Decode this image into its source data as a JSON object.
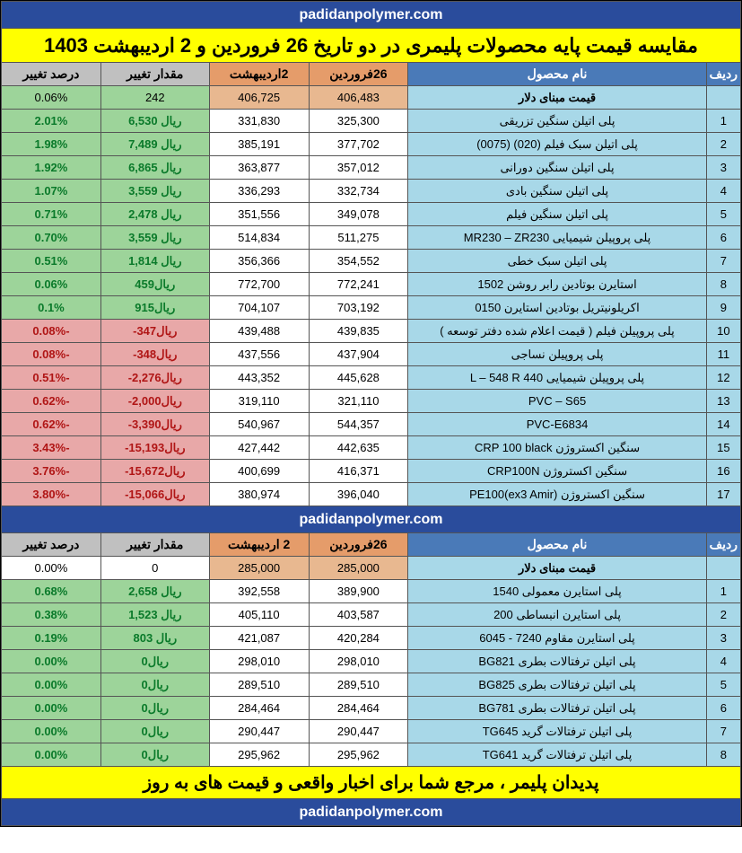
{
  "url": "padidanpolymer.com",
  "title": "مقایسه قیمت پایه محصولات پلیمری در دو تاریخ 26 فروردین و 2 اردیبهشت 1403",
  "footer": "پدیدان پلیمر ، مرجع شما برای اخبار واقعی  و قیمت های به روز",
  "watermark": "padidanpolymer",
  "colors": {
    "header_idx": "#4a7ab8",
    "header_name": "#4a7ab8",
    "header_date": "#e59c6a",
    "header_diff": "#c0c0c0",
    "name_cell": "#a8d8e8",
    "date_cell": "#ffffff",
    "dollar_cell": "#e8b890",
    "dollar_name": "#a8d8e8",
    "green": "#9dd49a",
    "red": "#e8a8a8",
    "neutral": "#ffffff",
    "url_bg": "#2a4c9c",
    "title_bg": "#ffff00"
  },
  "headers": {
    "idx": "ردیف",
    "name": "نام محصول",
    "date1": "26فروردین",
    "date2": "2اردیبهشت",
    "diff": "مقدار تغییر",
    "pct": "درصد تغییر"
  },
  "table1": {
    "dollar_row": {
      "name": "قیمت مبنای دلار",
      "d1": "406,483",
      "d2": "406,725",
      "diff": "242",
      "pct": "0.06%",
      "diff_color": "green"
    },
    "rows": [
      {
        "idx": "1",
        "name": "پلی اتیلن سنگین تزریقی",
        "d1": "325,300",
        "d2": "331,830",
        "diff": "ریال 6,530",
        "pct": "2.01%",
        "c": "green"
      },
      {
        "idx": "2",
        "name": "پلی اتیلن سبک فیلم (020) (0075)",
        "d1": "377,702",
        "d2": "385,191",
        "diff": "ریال 7,489",
        "pct": "1.98%",
        "c": "green"
      },
      {
        "idx": "3",
        "name": "پلی اتیلن سنگین دورانی",
        "d1": "357,012",
        "d2": "363,877",
        "diff": "ریال 6,865",
        "pct": "1.92%",
        "c": "green"
      },
      {
        "idx": "4",
        "name": "پلی اتیلن سنگین بادی",
        "d1": "332,734",
        "d2": "336,293",
        "diff": "ریال 3,559",
        "pct": "1.07%",
        "c": "green"
      },
      {
        "idx": "5",
        "name": "پلی اتیلن سنگین فیلم",
        "d1": "349,078",
        "d2": "351,556",
        "diff": "ریال 2,478",
        "pct": "0.71%",
        "c": "green"
      },
      {
        "idx": "6",
        "name": "پلی پروپیلن شیمیایی MR230 – ZR230",
        "d1": "511,275",
        "d2": "514,834",
        "diff": "ریال 3,559",
        "pct": "0.70%",
        "c": "green"
      },
      {
        "idx": "7",
        "name": "پلی اتیلن سبک خطی",
        "d1": "354,552",
        "d2": "356,366",
        "diff": "ریال 1,814",
        "pct": "0.51%",
        "c": "green"
      },
      {
        "idx": "8",
        "name": "استایرن بوتادین رابر روشن 1502",
        "d1": "772,241",
        "d2": "772,700",
        "diff": "ریال459",
        "pct": "0.06%",
        "c": "green"
      },
      {
        "idx": "9",
        "name": "اکریلونیتریل بوتادین استایرن 0150",
        "d1": "703,192",
        "d2": "704,107",
        "diff": "ریال915",
        "pct": "0.1%",
        "c": "green"
      },
      {
        "idx": "10",
        "name": "پلی پروپیلن فیلم  ( قیمت اعلام شده دفتر توسعه )",
        "d1": "439,835",
        "d2": "439,488",
        "diff": "ریال347-",
        "pct": "-0.08%",
        "c": "red"
      },
      {
        "idx": "11",
        "name": "پلی پروپیلن نساجی",
        "d1": "437,904",
        "d2": "437,556",
        "diff": "ریال348-",
        "pct": "-0.08%",
        "c": "red"
      },
      {
        "idx": "12",
        "name": "پلی پروپیلن شیمیایی 440 L – 548 R",
        "d1": "445,628",
        "d2": "443,352",
        "diff": "ریال2,276-",
        "pct": "-0.51%",
        "c": "red"
      },
      {
        "idx": "13",
        "name": "PVC – S65",
        "d1": "321,110",
        "d2": "319,110",
        "diff": "ریال2,000-",
        "pct": "-0.62%",
        "c": "red"
      },
      {
        "idx": "14",
        "name": "PVC-E6834",
        "d1": "544,357",
        "d2": "540,967",
        "diff": "ریال3,390-",
        "pct": "-0.62%",
        "c": "red"
      },
      {
        "idx": "15",
        "name": "سنگین اکستروژن CRP 100 black",
        "d1": "442,635",
        "d2": "427,442",
        "diff": "ریال15,193-",
        "pct": "-3.43%",
        "c": "red"
      },
      {
        "idx": "16",
        "name": "سنگین اکستروژن CRP100N",
        "d1": "416,371",
        "d2": "400,699",
        "diff": "ریال15,672-",
        "pct": "-3.76%",
        "c": "red"
      },
      {
        "idx": "17",
        "name": "سنگین اکستروژن PE100(ex3 Amir)",
        "d1": "396,040",
        "d2": "380,974",
        "diff": "ریال15,066-",
        "pct": "-3.80%",
        "c": "red"
      }
    ]
  },
  "headers2": {
    "date2": "2 اردیبهشت"
  },
  "table2": {
    "dollar_row": {
      "name": "قیمت مبنای دلار",
      "d1": "285,000",
      "d2": "285,000",
      "diff": "0",
      "pct": "0.00%",
      "diff_color": "neutral"
    },
    "rows": [
      {
        "idx": "1",
        "name": "پلی استایرن معمولی 1540",
        "d1": "389,900",
        "d2": "392,558",
        "diff": "ریال 2,658",
        "pct": "0.68%",
        "c": "green"
      },
      {
        "idx": "2",
        "name": "پلی استایرن انبساطی  200",
        "d1": "403,587",
        "d2": "405,110",
        "diff": "ریال 1,523",
        "pct": "0.38%",
        "c": "green"
      },
      {
        "idx": "3",
        "name": "پلی استایرن مقاوم 7240 - 6045",
        "d1": "420,284",
        "d2": "421,087",
        "diff": "ریال 803",
        "pct": "0.19%",
        "c": "green"
      },
      {
        "idx": "4",
        "name": "پلی اتیلن ترفتالات  بطری BG821",
        "d1": "298,010",
        "d2": "298,010",
        "diff": "ریال0",
        "pct": "0.00%",
        "c": "green"
      },
      {
        "idx": "5",
        "name": "پلی اتیلن ترفتالات  بطری BG825",
        "d1": "289,510",
        "d2": "289,510",
        "diff": "ریال0",
        "pct": "0.00%",
        "c": "green"
      },
      {
        "idx": "6",
        "name": "پلی اتیلن ترفتالات  بطری BG781",
        "d1": "284,464",
        "d2": "284,464",
        "diff": "ریال0",
        "pct": "0.00%",
        "c": "green"
      },
      {
        "idx": "7",
        "name": "پلی اتیلن ترفتالات گرید TG645",
        "d1": "290,447",
        "d2": "290,447",
        "diff": "ریال0",
        "pct": "0.00%",
        "c": "green"
      },
      {
        "idx": "8",
        "name": "پلی اتیلن ترفتالات گرید TG641",
        "d1": "295,962",
        "d2": "295,962",
        "diff": "ریال0",
        "pct": "0.00%",
        "c": "green"
      }
    ]
  }
}
